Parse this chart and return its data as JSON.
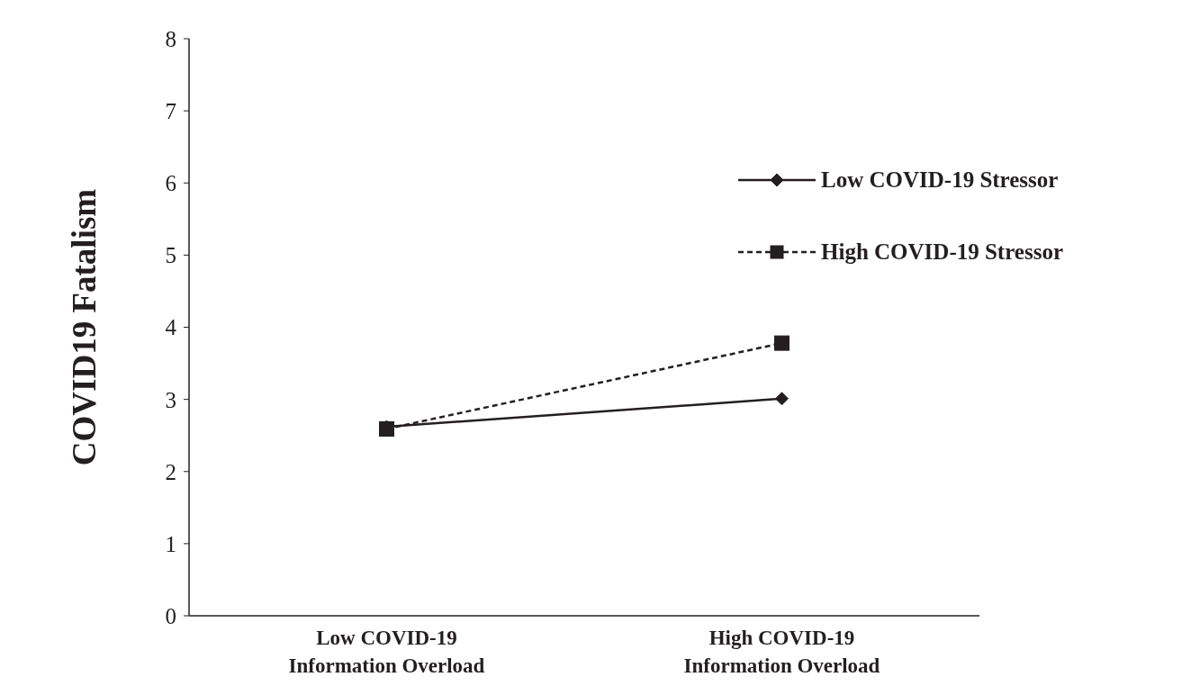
{
  "chart_data": {
    "type": "line",
    "ylabel": "COVID19 Fatalism",
    "categories": [
      "Low COVID-19\nInformation Overload",
      "High COVID-19\nInformation Overload"
    ],
    "series": [
      {
        "name": "Low COVID-19 Stressor",
        "color": "#231f20",
        "values": [
          2.62,
          3.01
        ],
        "marker": "diamond",
        "line_style": "solid"
      },
      {
        "name": "High COVID-19 Stressor",
        "color": "#231f20",
        "values": [
          2.59,
          3.78
        ],
        "marker": "square",
        "line_style": "dashed"
      }
    ],
    "ylim": [
      0,
      8
    ],
    "yticks": [
      0,
      1,
      2,
      3,
      4,
      5,
      6,
      7,
      8
    ],
    "grid": false,
    "legend": "right"
  }
}
